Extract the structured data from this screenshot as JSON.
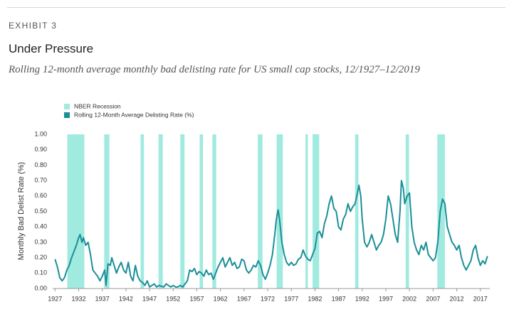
{
  "exhibit": "EXHIBIT 3",
  "chart_data": {
    "type": "line",
    "title": "Under Pressure",
    "subtitle": "Rolling 12-month average monthly bad delisting rate for US small cap stocks, 12/1927–12/2019",
    "y_label": "Monthly Bad Delist Rate (%)",
    "xlim": [
      1926.5,
      2019
    ],
    "xticks": [
      1927,
      1932,
      1937,
      1942,
      1947,
      1952,
      1957,
      1962,
      1967,
      1972,
      1977,
      1982,
      1987,
      1992,
      1997,
      2002,
      2007,
      2012,
      2017
    ],
    "ylim": [
      0,
      1
    ],
    "yticks": [
      {
        "value": 0,
        "label": "0.00"
      },
      {
        "value": 0.1,
        "label": "0.10"
      },
      {
        "value": 0.2,
        "label": "0.20"
      },
      {
        "value": 0.3,
        "label": "0.30"
      },
      {
        "value": 0.4,
        "label": "0.40"
      },
      {
        "value": 0.5,
        "label": "0.50"
      },
      {
        "value": 0.6,
        "label": "0.60"
      },
      {
        "value": 0.7,
        "label": "0.70"
      },
      {
        "value": 0.8,
        "label": "0.80"
      },
      {
        "value": 0.9,
        "label": "0.90"
      },
      {
        "value": 1,
        "label": "1.00"
      }
    ],
    "recessions": {
      "name": "NBER Recession",
      "color": "#a0eadf",
      "periods": [
        [
          1929.6,
          1933.2
        ],
        [
          1937.4,
          1938.5
        ],
        [
          1945.1,
          1945.8
        ],
        [
          1948.9,
          1949.8
        ],
        [
          1953.5,
          1954.4
        ],
        [
          1957.6,
          1958.3
        ],
        [
          1960.3,
          1961.1
        ],
        [
          1969.9,
          1970.9
        ],
        [
          1973.9,
          1975.2
        ],
        [
          1980.0,
          1980.5
        ],
        [
          1981.5,
          1982.9
        ],
        [
          1990.5,
          1991.2
        ],
        [
          2001.2,
          2001.9
        ],
        [
          2007.9,
          2009.5
        ]
      ]
    },
    "x": [
      1927,
      1927.5,
      1928,
      1928.5,
      1929,
      1929.5,
      1930,
      1930.5,
      1931,
      1931.5,
      1932,
      1932.3,
      1932.7,
      1933,
      1933.5,
      1934,
      1934.5,
      1935,
      1935.5,
      1936,
      1936.5,
      1937,
      1937.5,
      1937.8,
      1938.2,
      1938.7,
      1939,
      1939.5,
      1940,
      1940.5,
      1941,
      1941.5,
      1942,
      1942.5,
      1943,
      1943.5,
      1944,
      1944.5,
      1945,
      1945.5,
      1946,
      1946.5,
      1947,
      1948,
      1948.5,
      1949,
      1950,
      1950.5,
      1951,
      1951.5,
      1952,
      1952.5,
      1953,
      1953.5,
      1954,
      1954.5,
      1955,
      1955.5,
      1956,
      1956.5,
      1957,
      1957.5,
      1958,
      1958.5,
      1959,
      1959.5,
      1960,
      1960.5,
      1961,
      1961.5,
      1962,
      1962.5,
      1963,
      1963.5,
      1964,
      1964.5,
      1965,
      1965.5,
      1966,
      1966.5,
      1967,
      1967.5,
      1968,
      1968.5,
      1969,
      1969.5,
      1970,
      1970.5,
      1971,
      1971.5,
      1972,
      1972.5,
      1973,
      1973.5,
      1973.8,
      1974,
      1974.2,
      1974.5,
      1975,
      1975.5,
      1976,
      1976.5,
      1977,
      1977.5,
      1978,
      1978.5,
      1979,
      1979.5,
      1980,
      1980.5,
      1981,
      1981.5,
      1982,
      1982.5,
      1983,
      1983.5,
      1984,
      1984.5,
      1985,
      1985.5,
      1986,
      1986.5,
      1987,
      1987.5,
      1988,
      1988.5,
      1989,
      1989.5,
      1990,
      1990.5,
      1991,
      1991.3,
      1991.7,
      1992,
      1992.5,
      1993,
      1993.5,
      1994,
      1994.5,
      1995,
      1995.5,
      1996,
      1996.5,
      1997,
      1997.5,
      1998,
      1998.5,
      1999,
      1999.5,
      2000,
      2000.3,
      2000.7,
      2001,
      2001.5,
      2002,
      2002.5,
      2003,
      2003.5,
      2004,
      2004.5,
      2005,
      2005.5,
      2006,
      2006.5,
      2007,
      2007.5,
      2008,
      2008.5,
      2009,
      2009.5,
      2010,
      2010.5,
      2011,
      2011.5,
      2012,
      2012.5,
      2013,
      2013.5,
      2014,
      2014.5,
      2015,
      2015.5,
      2016,
      2016.5,
      2017,
      2017.5,
      2018,
      2018.5
    ],
    "series": [
      {
        "name": "Rolling 12-Month Average Delisting Rate (%)",
        "color": "#1b8f98",
        "values": [
          0.19,
          0.14,
          0.07,
          0.05,
          0.07,
          0.12,
          0.15,
          0.2,
          0.24,
          0.28,
          0.33,
          0.35,
          0.3,
          0.33,
          0.28,
          0.3,
          0.22,
          0.12,
          0.1,
          0.08,
          0.05,
          0.08,
          0.12,
          0.02,
          0.16,
          0.15,
          0.2,
          0.15,
          0.1,
          0.14,
          0.17,
          0.12,
          0.1,
          0.17,
          0.08,
          0.05,
          0.15,
          0.08,
          0.05,
          0.04,
          0.02,
          0.05,
          0.01,
          0.03,
          0.01,
          0.02,
          0.01,
          0.03,
          0.02,
          0.01,
          0.02,
          0.01,
          0.01,
          0.02,
          0.01,
          0.03,
          0.05,
          0.12,
          0.11,
          0.13,
          0.09,
          0.11,
          0.1,
          0.08,
          0.12,
          0.09,
          0.1,
          0.06,
          0.1,
          0.14,
          0.17,
          0.2,
          0.14,
          0.17,
          0.2,
          0.15,
          0.17,
          0.13,
          0.14,
          0.19,
          0.18,
          0.12,
          0.1,
          0.12,
          0.15,
          0.14,
          0.18,
          0.15,
          0.09,
          0.06,
          0.1,
          0.15,
          0.22,
          0.35,
          0.44,
          0.48,
          0.51,
          0.45,
          0.3,
          0.22,
          0.17,
          0.15,
          0.17,
          0.15,
          0.16,
          0.19,
          0.2,
          0.25,
          0.21,
          0.19,
          0.18,
          0.22,
          0.26,
          0.36,
          0.37,
          0.33,
          0.42,
          0.47,
          0.55,
          0.6,
          0.52,
          0.5,
          0.4,
          0.38,
          0.45,
          0.48,
          0.55,
          0.5,
          0.53,
          0.55,
          0.62,
          0.67,
          0.6,
          0.45,
          0.3,
          0.27,
          0.3,
          0.35,
          0.3,
          0.25,
          0.28,
          0.3,
          0.35,
          0.45,
          0.6,
          0.55,
          0.45,
          0.35,
          0.3,
          0.5,
          0.7,
          0.65,
          0.55,
          0.6,
          0.62,
          0.4,
          0.3,
          0.25,
          0.22,
          0.28,
          0.25,
          0.3,
          0.22,
          0.2,
          0.18,
          0.2,
          0.3,
          0.5,
          0.58,
          0.55,
          0.4,
          0.35,
          0.3,
          0.28,
          0.25,
          0.28,
          0.2,
          0.15,
          0.12,
          0.15,
          0.18,
          0.25,
          0.28,
          0.2,
          0.15,
          0.18,
          0.16,
          0.21
        ]
      }
    ]
  }
}
